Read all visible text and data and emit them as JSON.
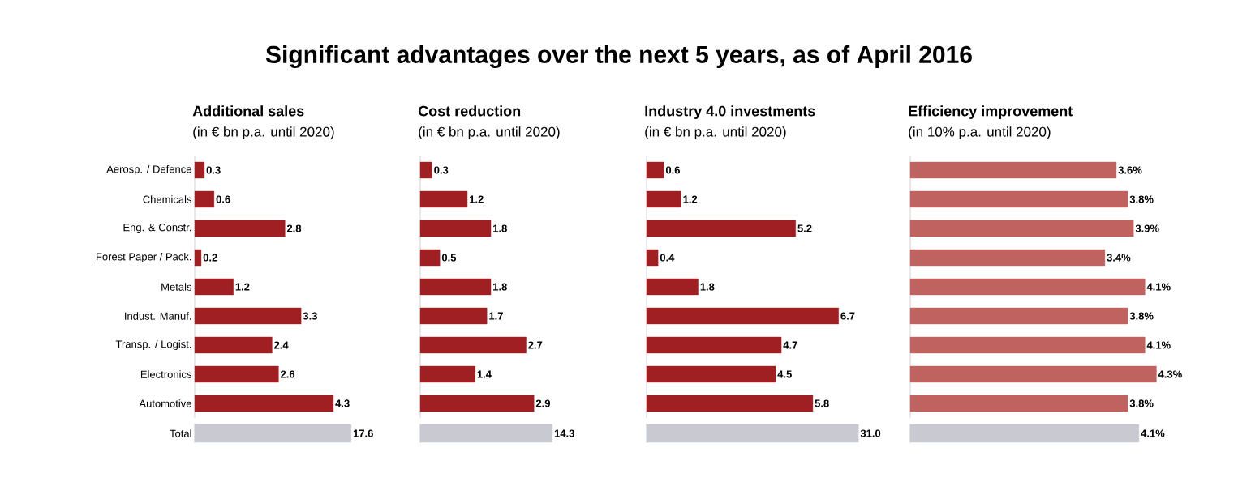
{
  "chart_data": [
    {
      "type": "other",
      "title": "Significant advantages over the next 5 years, as of April 2016"
    },
    {
      "type": "bar",
      "orientation": "horizontal",
      "title": "Additional sales",
      "subtitle": "(in € bn p.a. until 2020)",
      "categories": [
        "Aerosp. / Defence",
        "Chemicals",
        "Eng. & Constr.",
        "Forest Paper / Pack.",
        "Metals",
        "Indust. Manuf.",
        "Transp. / Logist.",
        "Electronics",
        "Automotive"
      ],
      "values": [
        0.3,
        0.6,
        2.8,
        0.2,
        1.2,
        3.3,
        2.4,
        2.6,
        4.3
      ],
      "color": "#a01f22",
      "data_labels": true
    },
    {
      "type": "bar",
      "orientation": "horizontal",
      "title": "Cost reduction",
      "subtitle": "(in € bn p.a. until 2020)",
      "values": [
        0.3,
        1.2,
        1.8,
        0.5,
        1.8,
        1.7,
        2.7,
        1.4,
        2.9
      ],
      "color": "#a01f22",
      "data_labels": true
    },
    {
      "type": "bar",
      "orientation": "horizontal",
      "title": "Industry 4.0 investments",
      "subtitle": "(in € bn p.a. until 2020)",
      "values": [
        0.6,
        1.2,
        5.2,
        0.4,
        1.8,
        6.7,
        4.7,
        4.5,
        5.8
      ],
      "color": "#a01f22",
      "data_labels": true
    },
    {
      "type": "bar",
      "orientation": "horizontal",
      "title": "Efficiency improvement",
      "subtitle": "(in 10% p.a. until 2020)",
      "values": [
        3.6,
        3.8,
        3.9,
        3.4,
        4.1,
        3.8,
        4.1,
        4.3,
        3.8
      ],
      "color": "#c0625f",
      "value_labels": [
        "3.6%",
        "3.8%",
        "3.9%",
        "3.4%",
        "4.1%",
        "3.8%",
        "4.1%",
        "4.3%",
        "3.8%"
      ]
    },
    {
      "type": "bar",
      "orientation": "horizontal",
      "categories": [
        "Total"
      ],
      "values": [
        17.6
      ],
      "color": "#c8c9d1",
      "value_labels": [
        "17.6"
      ]
    },
    {
      "type": "bar",
      "orientation": "horizontal",
      "values": [
        14.3
      ],
      "color": "#c8c9d1",
      "value_labels": [
        "14.3"
      ]
    },
    {
      "type": "bar",
      "orientation": "horizontal",
      "values": [
        31.0
      ],
      "color": "#c8c9d1",
      "value_labels": [
        "31.0"
      ]
    },
    {
      "type": "bar",
      "orientation": "horizontal",
      "values": [
        4.1
      ],
      "color": "#c8c9d1",
      "value_labels": [
        "4.1%"
      ]
    }
  ]
}
